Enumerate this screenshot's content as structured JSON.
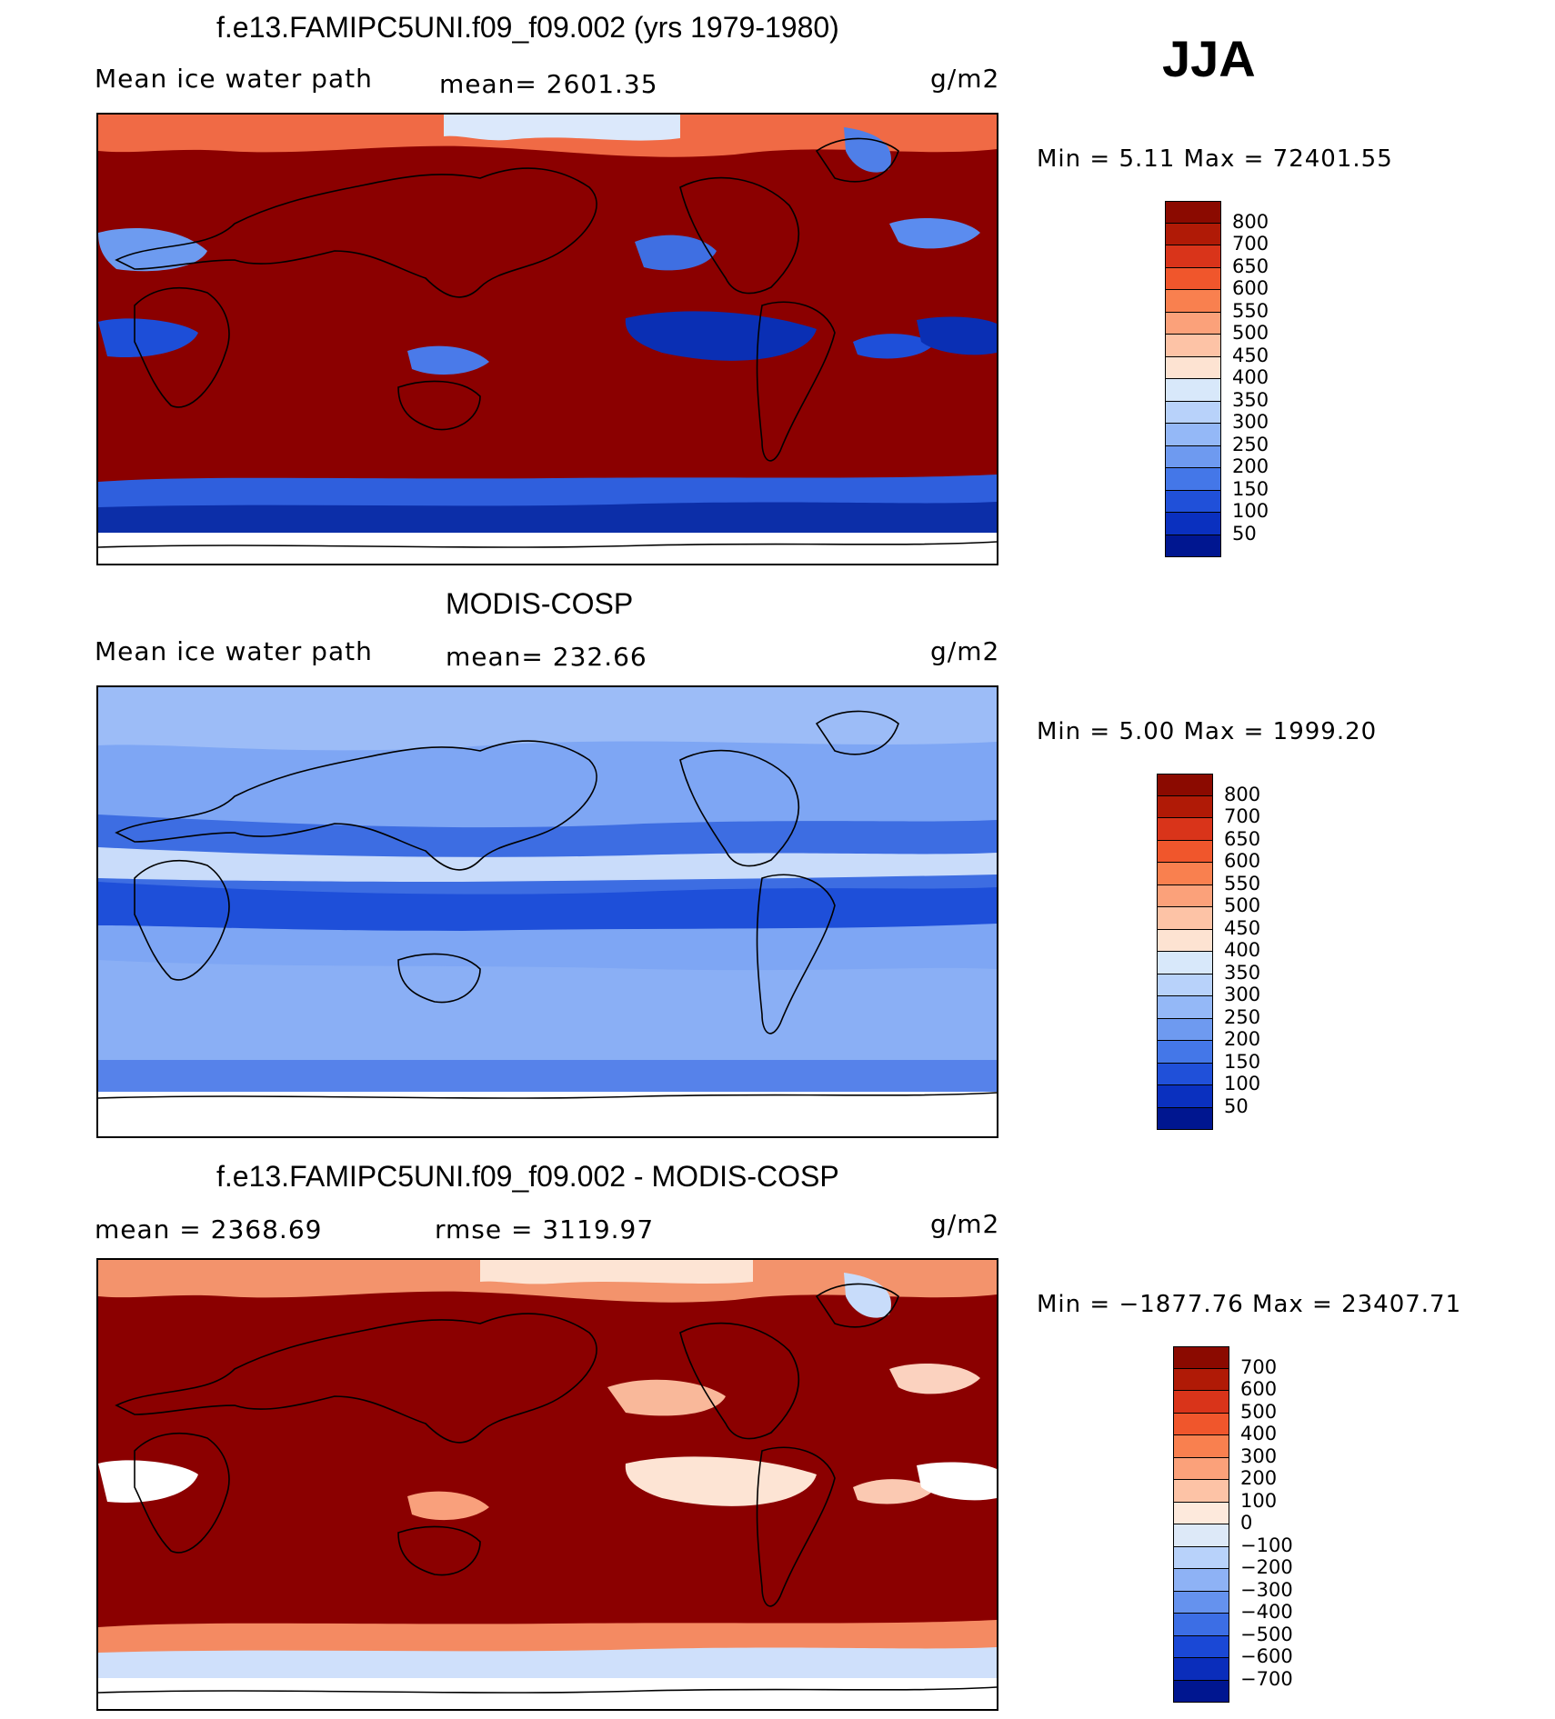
{
  "season": "JJA",
  "panels": [
    {
      "title": "f.e13.FAMIPC5UNI.f09_f09.002 (yrs 1979-1980)",
      "left_label": "Mean ice water path",
      "center_label": "mean= 2601.35",
      "units": "g/m2",
      "minmax": "Min =    5.11 Max = 72401.55",
      "colorbar_ticks": [
        "800",
        "700",
        "650",
        "600",
        "550",
        "500",
        "450",
        "400",
        "350",
        "300",
        "250",
        "200",
        "150",
        "100",
        "50"
      ],
      "colorbar_colors": [
        "#8b0a00",
        "#b01a06",
        "#d9341a",
        "#f0562c",
        "#f9804f",
        "#fba17a",
        "#fdc3a6",
        "#fde3d2",
        "#d8e8fa",
        "#b8d2fa",
        "#94b8f7",
        "#6e9af0",
        "#4477e8",
        "#2050d9",
        "#0a30bf",
        "#001690"
      ],
      "field_color": "#8b0000"
    },
    {
      "title": "MODIS-COSP",
      "left_label": "Mean ice water path",
      "center_label": "mean= 232.66",
      "units": "g/m2",
      "minmax": "Min =    5.00 Max =  1999.20",
      "colorbar_ticks": [
        "800",
        "700",
        "650",
        "600",
        "550",
        "500",
        "450",
        "400",
        "350",
        "300",
        "250",
        "200",
        "150",
        "100",
        "50"
      ],
      "colorbar_colors": [
        "#8b0a00",
        "#b01a06",
        "#d9341a",
        "#f0562c",
        "#f9804f",
        "#fba17a",
        "#fdc3a6",
        "#fde3d2",
        "#d8e8fa",
        "#b8d2fa",
        "#94b8f7",
        "#6e9af0",
        "#4477e8",
        "#2050d9",
        "#0a30bf",
        "#001690"
      ],
      "field_color": "#5c8cf0"
    },
    {
      "title": "f.e13.FAMIPC5UNI.f09_f09.002 - MODIS-COSP",
      "left_label": "mean = 2368.69",
      "center_label": "rmse = 3119.97",
      "units": "g/m2",
      "minmax": "Min = −1877.76 Max = 23407.71",
      "colorbar_ticks": [
        "700",
        "600",
        "500",
        "400",
        "300",
        "200",
        "100",
        "0",
        "−100",
        "−200",
        "−300",
        "−400",
        "−500",
        "−600",
        "−700"
      ],
      "colorbar_colors": [
        "#8b0a00",
        "#b01a06",
        "#d9341a",
        "#f0562c",
        "#f9804f",
        "#fba17a",
        "#fdc3a6",
        "#fde9dc",
        "#dde9f8",
        "#b8d2fa",
        "#8eb2f5",
        "#6592ee",
        "#3c6ee5",
        "#1a48d6",
        "#0a2dbb",
        "#001690"
      ],
      "field_color": "#8b0000"
    }
  ],
  "chart_data": {
    "type": "heatmap",
    "description_values": {
      "season": "JJA",
      "field": "Mean ice water path",
      "units": "g/m2",
      "panels": [
        {
          "name": "f.e13.FAMIPC5UNI.f09_f09.002 (yrs 1979-1980)",
          "mean": 2601.35,
          "min": 5.11,
          "max": 72401.55
        },
        {
          "name": "MODIS-COSP",
          "mean": 232.66,
          "min": 5.0,
          "max": 1999.2
        },
        {
          "name": "f.e13.FAMIPC5UNI.f09_f09.002 - MODIS-COSP",
          "mean": 2368.69,
          "rmse": 3119.97,
          "min": -1877.76,
          "max": 23407.71
        }
      ],
      "contour_levels_abs": [
        50,
        100,
        150,
        200,
        250,
        300,
        350,
        400,
        450,
        500,
        550,
        600,
        650,
        700,
        800
      ],
      "contour_levels_diff": [
        -700,
        -600,
        -500,
        -400,
        -300,
        -200,
        -100,
        0,
        100,
        200,
        300,
        400,
        500,
        600,
        700
      ]
    }
  }
}
